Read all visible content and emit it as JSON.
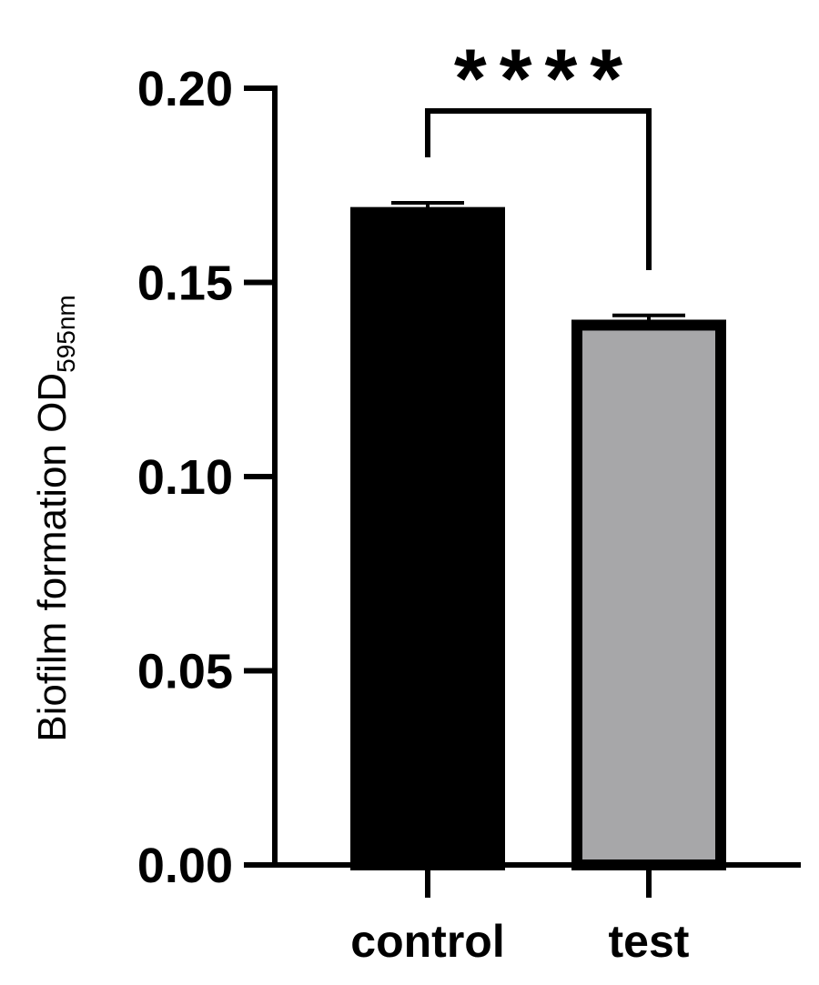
{
  "chart_data": {
    "type": "bar",
    "categories": [
      "control",
      "test"
    ],
    "values": [
      0.168,
      0.139
    ],
    "errors": [
      0.0025,
      0.0025
    ],
    "bar_fills": [
      "#000000",
      "#a7a7a9"
    ],
    "bar_edge": "#000000",
    "ylabel": "Biofilm formation OD",
    "ylabel_subscript": "595nm",
    "ylim": [
      0,
      0.2
    ],
    "yticks": [
      "0.00",
      "0.05",
      "0.10",
      "0.15",
      "0.20"
    ],
    "ytick_values": [
      0,
      0.05,
      0.1,
      0.15,
      0.2
    ],
    "significance": {
      "label": "****",
      "between": [
        0,
        1
      ]
    },
    "grid": false
  }
}
